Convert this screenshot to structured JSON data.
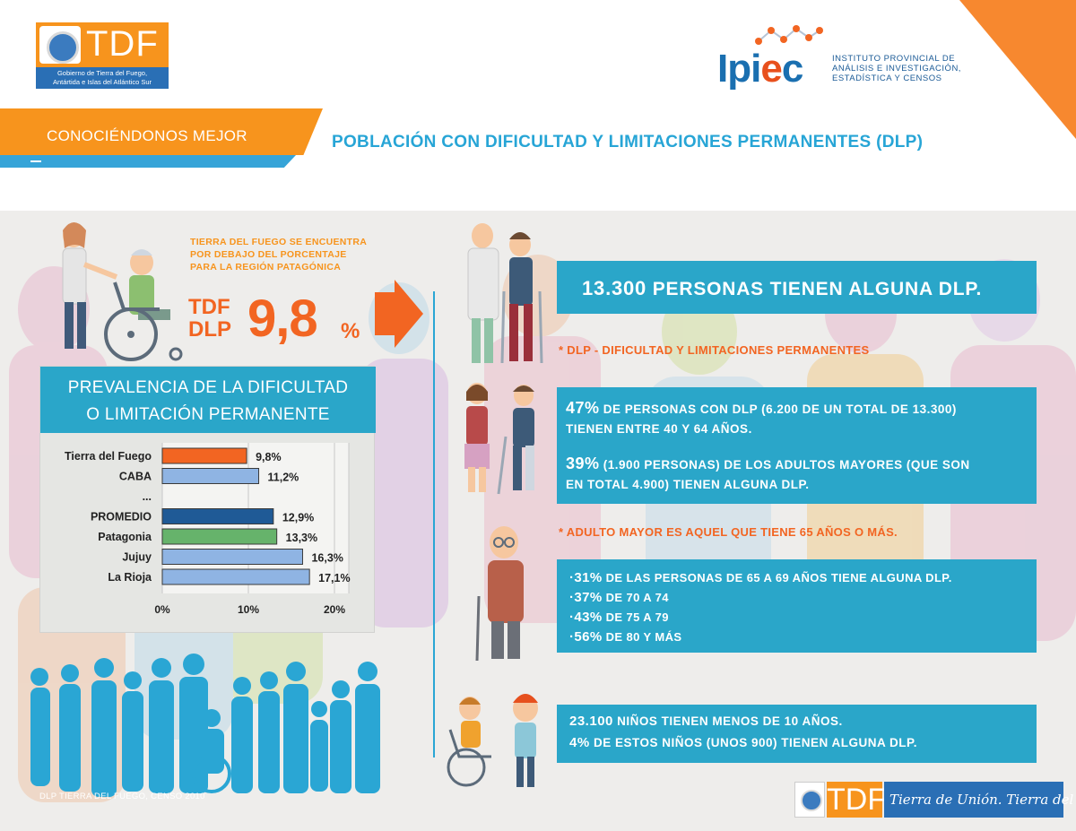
{
  "header": {
    "tdf_logo_text": "TDF",
    "tdf_logo_caption_1": "Gobierno de Tierra del Fuego,",
    "tdf_logo_caption_2": "Antártida e Islas del Atlántico Sur",
    "ipiec_word_1": "Ipi",
    "ipiec_word_2": "e",
    "ipiec_word_3": "c",
    "ipiec_line_1": "INSTITUTO PROVINCIAL DE",
    "ipiec_line_2": "ANÁLISIS E INVESTIGACIÓN,",
    "ipiec_line_3": "ESTADÍSTICA Y CENSOS",
    "section_label": "CONOCIÉNDONOS MEJOR",
    "title": "POBLACIÓN CON DIFICULTAD Y LIMITACIONES PERMANENTES (DLP)"
  },
  "highlight": {
    "note_1": "TIERRA DEL FUEGO SE ENCUENTRA",
    "note_2": "POR DEBAJO DEL PORCENTAJE",
    "note_3": "PARA LA REGIÓN PATAGÓNICA",
    "label_1": "TDF",
    "label_2": "DLP",
    "value": "9,8",
    "unit": "%"
  },
  "chart_data": {
    "type": "bar",
    "orientation": "horizontal",
    "title_1": "PREVALENCIA DE LA DIFICULTAD",
    "title_2": "O LIMITACIÓN PERMANENTE",
    "categories": [
      "Tierra del Fuego",
      "CABA",
      "...",
      "PROMEDIO",
      "Patagonia",
      "Jujuy",
      "La Rioja"
    ],
    "values": [
      9.8,
      11.2,
      null,
      12.9,
      13.3,
      16.3,
      17.1
    ],
    "value_labels": [
      "9,8%",
      "11,2%",
      "",
      "12,9%",
      "13,3%",
      "16,3%",
      "17,1%"
    ],
    "bar_colors": [
      "#f26522",
      "#8fb4e3",
      null,
      "#1f5a96",
      "#66b36b",
      "#8fb4e3",
      "#8fb4e3"
    ],
    "xlim": [
      0,
      20
    ],
    "x_ticks": [
      "0%",
      "10%",
      "20%"
    ],
    "grid": true
  },
  "facts": {
    "box1_number": "13.300",
    "box1_text": "PERSONAS TIENEN ALGUNA DLP.",
    "note_dlp": "* DLP - DIFICULTAD Y LIMITACIONES PERMANENTES",
    "box2_p1_pct": "47%",
    "box2_p1_a": "DE PERSONAS CON DLP (6.200 DE UN TOTAL DE 13.300)",
    "box2_p1_b": "TIENEN ENTRE 40 Y 64 AÑOS.",
    "box2_p2_pct": "39%",
    "box2_p2_a": "(1.900 PERSONAS) DE LOS ADULTOS MAYORES (QUE SON",
    "box2_p2_b": "EN TOTAL 4.900) TIENEN ALGUNA DLP.",
    "note_adulto": "* ADULTO MAYOR ES AQUEL QUE TIENE 65 AÑOS O MÁS.",
    "box3": [
      {
        "pct": "·31%",
        "text": "DE LAS PERSONAS DE 65 A 69 AÑOS TIENE ALGUNA DLP."
      },
      {
        "pct": "·37%",
        "text": "DE 70 A 74"
      },
      {
        "pct": "·43%",
        "text": "DE 75 A 79"
      },
      {
        "pct": "·56%",
        "text": "DE 80 Y MÁS"
      }
    ],
    "box4_l1_num": "23.100",
    "box4_l1_text": "NIÑOS TIENEN MENOS DE 10 AÑOS.",
    "box4_l2_pct": "4%",
    "box4_l2_text": "DE ESTOS NIÑOS (UNOS 900) TIENEN ALGUNA DLP."
  },
  "footer": {
    "source": "DLP TIERRA DEL FUEGO, CENSO 2010",
    "logo_text": "TDF",
    "slogan": "Tierra de Unión. Tierra del Fuego."
  },
  "colors": {
    "orange": "#f7941d",
    "orange_dark": "#f26522",
    "cyan": "#2aa6c9",
    "blue": "#2a6fb5"
  }
}
